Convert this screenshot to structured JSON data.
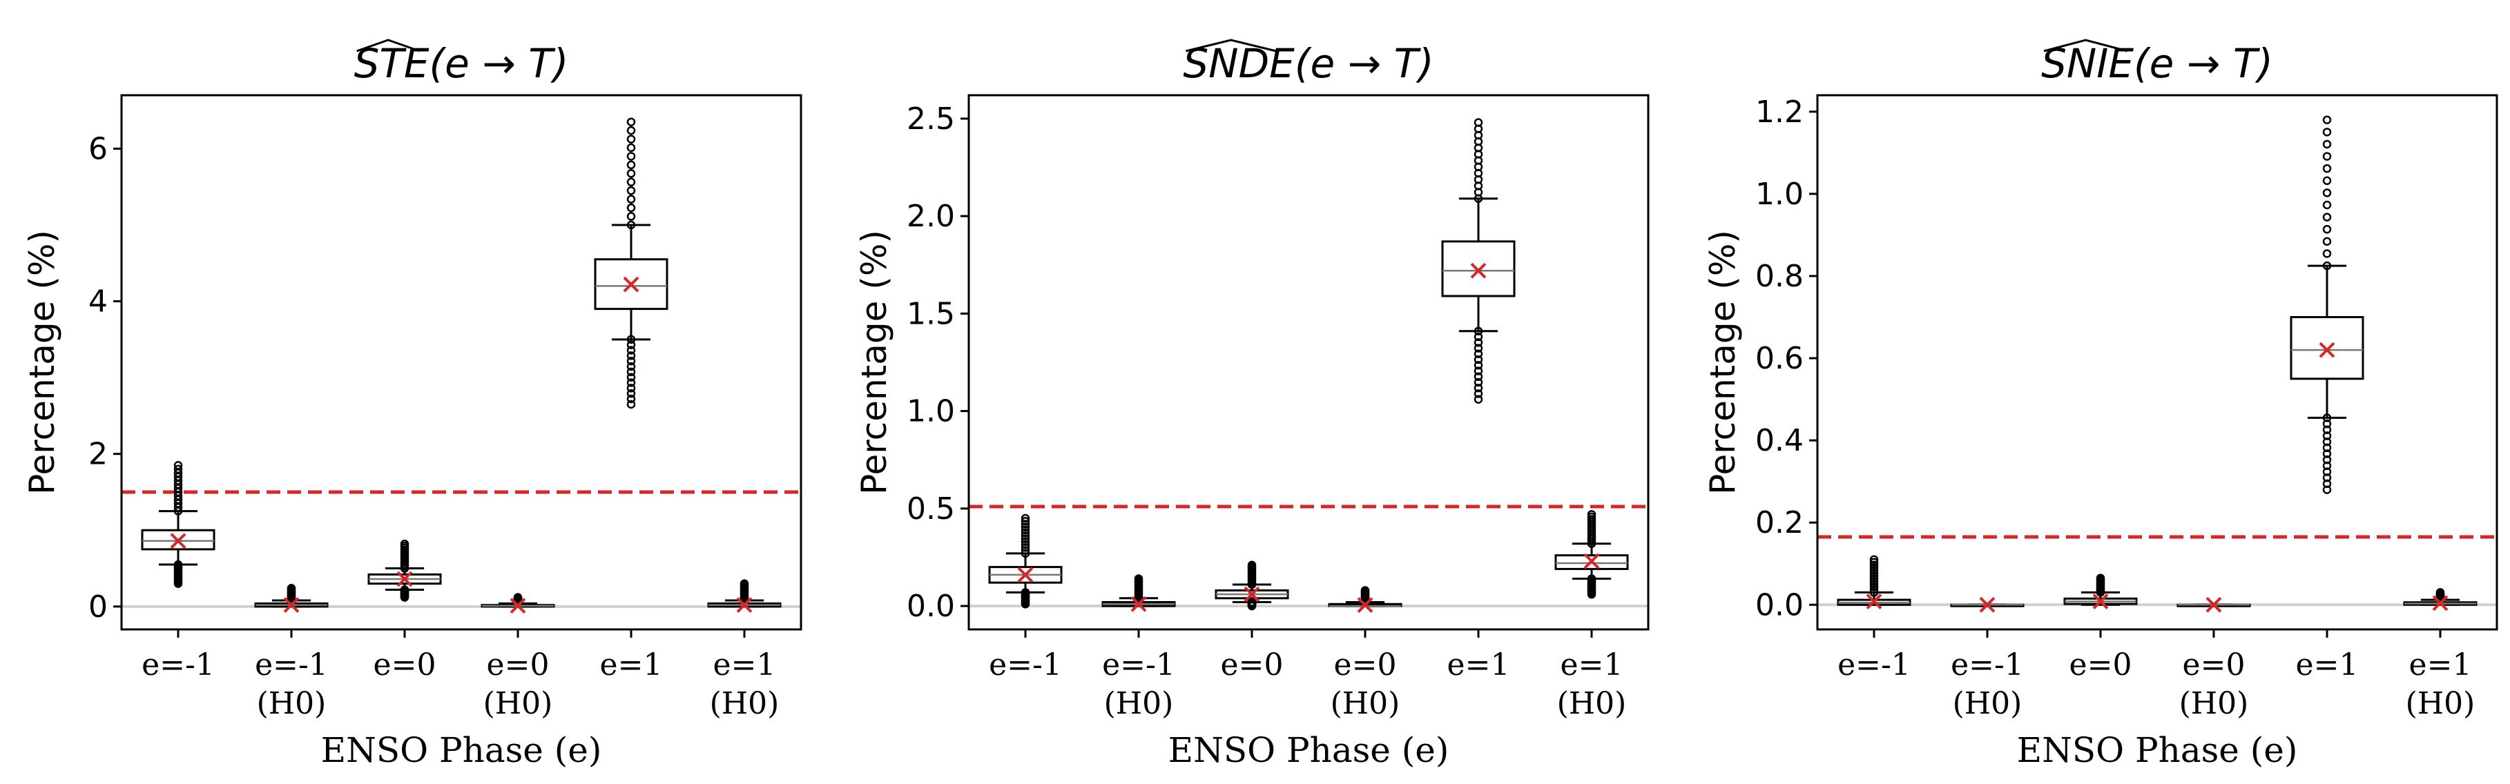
{
  "chart_data": [
    {
      "type": "box",
      "title": "STE(e → T)",
      "title_hat": true,
      "xlabel": "ENSO Phase (e)",
      "ylabel": "Percentage (%)",
      "ylim": [
        -0.3,
        6.7
      ],
      "yticks": [
        0,
        2,
        4,
        6
      ],
      "ytick_labels": [
        "0",
        "2",
        "4",
        "6"
      ],
      "threshold": 1.5,
      "categories": [
        {
          "line1": "e=-1",
          "line2": ""
        },
        {
          "line1": "e=-1",
          "line2": "(H0)"
        },
        {
          "line1": "e=0",
          "line2": ""
        },
        {
          "line1": "e=0",
          "line2": "(H0)"
        },
        {
          "line1": "e=1",
          "line2": ""
        },
        {
          "line1": "e=1",
          "line2": "(H0)"
        }
      ],
      "boxes": [
        {
          "min": 0.3,
          "whislo": 0.55,
          "q1": 0.75,
          "median": 0.86,
          "q3": 1.0,
          "whishi": 1.25,
          "max": 1.85,
          "mean": 0.86
        },
        {
          "min": 0.0,
          "whislo": 0.0,
          "q1": 0.0,
          "median": 0.02,
          "q3": 0.04,
          "whishi": 0.08,
          "max": 0.24,
          "mean": 0.02
        },
        {
          "min": 0.12,
          "whislo": 0.22,
          "q1": 0.3,
          "median": 0.36,
          "q3": 0.42,
          "whishi": 0.5,
          "max": 0.82,
          "mean": 0.36
        },
        {
          "min": 0.0,
          "whislo": 0.0,
          "q1": 0.0,
          "median": 0.01,
          "q3": 0.02,
          "whishi": 0.04,
          "max": 0.12,
          "mean": 0.01
        },
        {
          "min": 2.65,
          "whislo": 3.5,
          "q1": 3.9,
          "median": 4.2,
          "q3": 4.55,
          "whishi": 5.0,
          "max": 6.35,
          "mean": 4.22
        },
        {
          "min": 0.0,
          "whislo": 0.0,
          "q1": 0.0,
          "median": 0.02,
          "q3": 0.04,
          "whishi": 0.08,
          "max": 0.3,
          "mean": 0.02
        }
      ]
    },
    {
      "type": "box",
      "title": "SNDE(e → T)",
      "title_hat": true,
      "xlabel": "ENSO Phase (e)",
      "ylabel": "Percentage (%)",
      "ylim": [
        -0.12,
        2.62
      ],
      "yticks": [
        0.0,
        0.5,
        1.0,
        1.5,
        2.0,
        2.5
      ],
      "ytick_labels": [
        "0.0",
        "0.5",
        "1.0",
        "1.5",
        "2.0",
        "2.5"
      ],
      "threshold": 0.51,
      "categories": [
        {
          "line1": "e=-1",
          "line2": ""
        },
        {
          "line1": "e=-1",
          "line2": "(H0)"
        },
        {
          "line1": "e=0",
          "line2": ""
        },
        {
          "line1": "e=0",
          "line2": "(H0)"
        },
        {
          "line1": "e=1",
          "line2": ""
        },
        {
          "line1": "e=1",
          "line2": "(H0)"
        }
      ],
      "boxes": [
        {
          "min": 0.01,
          "whislo": 0.07,
          "q1": 0.12,
          "median": 0.16,
          "q3": 0.2,
          "whishi": 0.27,
          "max": 0.45,
          "mean": 0.16
        },
        {
          "min": 0.0,
          "whislo": 0.0,
          "q1": 0.0,
          "median": 0.01,
          "q3": 0.02,
          "whishi": 0.04,
          "max": 0.14,
          "mean": 0.01
        },
        {
          "min": 0.0,
          "whislo": 0.02,
          "q1": 0.04,
          "median": 0.06,
          "q3": 0.08,
          "whishi": 0.11,
          "max": 0.21,
          "mean": 0.06
        },
        {
          "min": 0.0,
          "whislo": 0.0,
          "q1": 0.0,
          "median": 0.0,
          "q3": 0.01,
          "whishi": 0.02,
          "max": 0.08,
          "mean": 0.005
        },
        {
          "min": 1.06,
          "whislo": 1.41,
          "q1": 1.59,
          "median": 1.72,
          "q3": 1.87,
          "whishi": 2.09,
          "max": 2.48,
          "mean": 1.72
        },
        {
          "min": 0.06,
          "whislo": 0.14,
          "q1": 0.19,
          "median": 0.22,
          "q3": 0.26,
          "whishi": 0.32,
          "max": 0.47,
          "mean": 0.23
        }
      ]
    },
    {
      "type": "box",
      "title": "SNIE(e → T)",
      "title_hat": true,
      "xlabel": "ENSO Phase (e)",
      "ylabel": "Percentage (%)",
      "ylim": [
        -0.06,
        1.24
      ],
      "yticks": [
        0.0,
        0.2,
        0.4,
        0.6,
        0.8,
        1.0,
        1.2
      ],
      "ytick_labels": [
        "0.0",
        "0.2",
        "0.4",
        "0.6",
        "0.8",
        "1.0",
        "1.2"
      ],
      "threshold": 0.165,
      "categories": [
        {
          "line1": "e=-1",
          "line2": ""
        },
        {
          "line1": "e=-1",
          "line2": "(H0)"
        },
        {
          "line1": "e=0",
          "line2": ""
        },
        {
          "line1": "e=0",
          "line2": "(H0)"
        },
        {
          "line1": "e=1",
          "line2": ""
        },
        {
          "line1": "e=1",
          "line2": "(H0)"
        }
      ],
      "boxes": [
        {
          "min": 0.0,
          "whislo": 0.0,
          "q1": 0.0,
          "median": 0.005,
          "q3": 0.012,
          "whishi": 0.03,
          "max": 0.11,
          "mean": 0.008
        },
        {
          "min": 0.0,
          "whislo": 0.0,
          "q1": 0.0,
          "median": 0.0,
          "q3": 0.0,
          "whishi": 0.0,
          "max": 0.0,
          "mean": 0.0
        },
        {
          "min": 0.0,
          "whislo": 0.0,
          "q1": 0.002,
          "median": 0.008,
          "q3": 0.015,
          "whishi": 0.03,
          "max": 0.065,
          "mean": 0.008
        },
        {
          "min": 0.0,
          "whislo": 0.0,
          "q1": 0.0,
          "median": 0.0,
          "q3": 0.0,
          "whishi": 0.0,
          "max": 0.0,
          "mean": 0.0
        },
        {
          "min": 0.28,
          "whislo": 0.455,
          "q1": 0.55,
          "median": 0.62,
          "q3": 0.7,
          "whishi": 0.825,
          "max": 1.18,
          "mean": 0.62
        },
        {
          "min": 0.0,
          "whislo": 0.0,
          "q1": 0.0,
          "median": 0.003,
          "q3": 0.006,
          "whishi": 0.012,
          "max": 0.03,
          "mean": 0.004
        }
      ]
    }
  ]
}
